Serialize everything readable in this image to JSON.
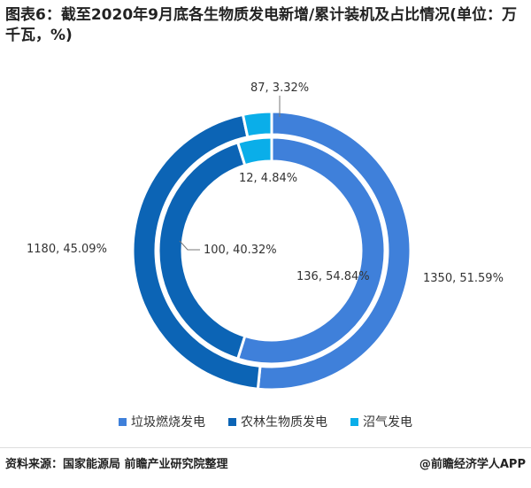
{
  "chart_data": {
    "type": "pie",
    "subtype": "double-donut",
    "title": "图表6：截至2020年9月底各生物质发电新增/累计装机及占比情况(单位：万千瓦，%)",
    "categories": [
      "垃圾燃烧发电",
      "农林生物质发电",
      "沼气发电"
    ],
    "colors": [
      "#3f80da",
      "#0c64b5",
      "#0aaee9"
    ],
    "series": [
      {
        "ring": "outer",
        "values": [
          1350,
          1180,
          87
        ],
        "percents": [
          "51.59%",
          "45.09%",
          "3.32%"
        ],
        "labels": [
          "1350, 51.59%",
          "1180, 45.09%",
          "87, 3.32%"
        ]
      },
      {
        "ring": "inner",
        "values": [
          136,
          100,
          12
        ],
        "percents": [
          "54.84%",
          "40.32%",
          "4.84%"
        ],
        "labels": [
          "136, 54.84%",
          "100, 40.32%",
          "12, 4.84%"
        ]
      }
    ],
    "legend_position": "bottom"
  },
  "footer": {
    "source": "资料来源：国家能源局 前瞻产业研究院整理",
    "brand": "@前瞻经济学人APP"
  }
}
